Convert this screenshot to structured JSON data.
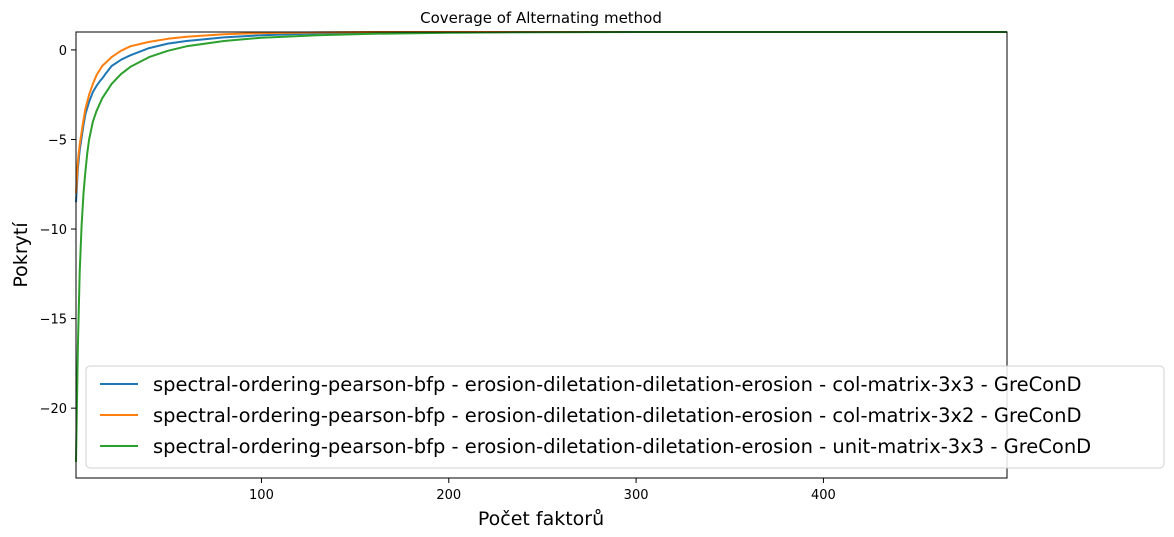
{
  "chart_data": {
    "type": "line",
    "title": "Coverage of Alternating method",
    "xlabel": "Počet faktorů",
    "ylabel": "Pokrytí",
    "xlim": [
      1,
      498
    ],
    "ylim": [
      -23.9,
      1.0
    ],
    "xticks": [
      100,
      200,
      300,
      400
    ],
    "xtick_labels": [
      "100",
      "200",
      "300",
      "400"
    ],
    "yticks": [
      0,
      -5,
      -10,
      -15,
      -20
    ],
    "ytick_labels": [
      "0",
      "−5",
      "−10",
      "−15",
      "−20"
    ],
    "grid": false,
    "legend_position": "lower-right",
    "series": [
      {
        "name": "spectral-ordering-pearson-bfp - erosion-diletation-diletation-erosion - col-matrix-3x3 - GreConD",
        "color": "#1f77b4",
        "x": [
          1,
          2,
          3,
          4,
          5,
          6,
          8,
          10,
          12,
          14,
          15,
          17,
          20,
          25,
          30,
          40,
          50,
          60,
          80,
          100,
          130,
          160,
          200,
          250,
          300,
          400,
          498
        ],
        "y": [
          -8.5,
          -6.6,
          -5.6,
          -4.9,
          -4.2,
          -3.6,
          -2.9,
          -2.35,
          -2.0,
          -1.7,
          -1.6,
          -1.3,
          -0.9,
          -0.55,
          -0.3,
          0.1,
          0.35,
          0.5,
          0.7,
          0.82,
          0.92,
          0.97,
          1.0,
          1.0,
          1.0,
          1.0,
          1.0
        ]
      },
      {
        "name": "spectral-ordering-pearson-bfp - erosion-diletation-diletation-erosion - col-matrix-3x2 - GreConD",
        "color": "#ff7f0e",
        "x": [
          1,
          2,
          3,
          4,
          5,
          6,
          8,
          10,
          12,
          15,
          20,
          25,
          30,
          40,
          50,
          60,
          80,
          100,
          130,
          160,
          200,
          250,
          300,
          400,
          498
        ],
        "y": [
          -8.0,
          -6.2,
          -5.3,
          -4.6,
          -3.9,
          -3.3,
          -2.5,
          -1.9,
          -1.4,
          -0.9,
          -0.4,
          -0.05,
          0.2,
          0.45,
          0.62,
          0.74,
          0.87,
          0.94,
          0.98,
          1.0,
          1.0,
          1.0,
          1.0,
          1.0,
          1.0
        ]
      },
      {
        "name": "spectral-ordering-pearson-bfp - erosion-diletation-diletation-erosion - unit-matrix-3x3 - GreConD",
        "color": "#2ca02c",
        "x": [
          1,
          2,
          3,
          4,
          5,
          6,
          7,
          8,
          10,
          12,
          15,
          20,
          25,
          30,
          40,
          50,
          60,
          80,
          100,
          130,
          160,
          200,
          250,
          300,
          400,
          498
        ],
        "y": [
          -23.0,
          -16.5,
          -12.4,
          -9.8,
          -8.0,
          -6.8,
          -5.8,
          -5.0,
          -4.0,
          -3.4,
          -2.7,
          -1.9,
          -1.35,
          -0.95,
          -0.4,
          -0.05,
          0.2,
          0.5,
          0.68,
          0.82,
          0.9,
          0.96,
          0.99,
          1.0,
          1.0,
          1.0
        ]
      }
    ]
  }
}
